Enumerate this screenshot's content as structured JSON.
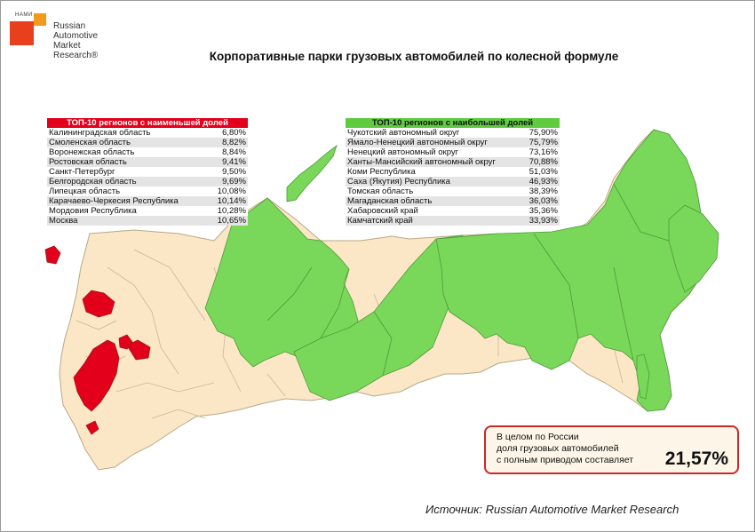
{
  "logo": {
    "nami": "НАМИ",
    "lines": [
      "Russian",
      "Automotive",
      "Market",
      "Research®"
    ]
  },
  "title": "Корпоративные парки грузовых автомобилей по колесной формуле",
  "low_table": {
    "header": "ТОП-10 регионов с наименьшей долей",
    "rows": [
      {
        "region": "Калининградская  область",
        "value": "6,80%"
      },
      {
        "region": "Смоленская область",
        "value": "8,82%"
      },
      {
        "region": "Воронежская область",
        "value": "8,84%"
      },
      {
        "region": "Ростовская область",
        "value": "9,41%"
      },
      {
        "region": "Санкт-Петербург",
        "value": "9,50%"
      },
      {
        "region": "Белгородская область",
        "value": "9,69%"
      },
      {
        "region": "Липецкая область",
        "value": "10,08%"
      },
      {
        "region": "Карачаево-Черкесия Республика",
        "value": "10,14%"
      },
      {
        "region": "Мордовия Республика",
        "value": "10,28%"
      },
      {
        "region": "Москва",
        "value": "10,65%"
      }
    ]
  },
  "high_table": {
    "header": "ТОП-10 регионов с наибольшей долей",
    "rows": [
      {
        "region": "Чукотский  автономный  округ",
        "value": "75,90%"
      },
      {
        "region": "Ямало-Ненецкий  автономный округ",
        "value": "75,79%"
      },
      {
        "region": "Ненецкий  автономный  округ",
        "value": "73,16%"
      },
      {
        "region": "Ханты-Мансийский  автономный округ",
        "value": "70,88%"
      },
      {
        "region": "Коми Республика",
        "value": "51,03%"
      },
      {
        "region": "Саха (Якутия) Республика",
        "value": "46,93%"
      },
      {
        "region": "Томская область",
        "value": "38,39%"
      },
      {
        "region": "Магаданская область",
        "value": "36,03%"
      },
      {
        "region": "Хабаровский край",
        "value": "35,36%"
      },
      {
        "region": "Камчатский край",
        "value": "33,93%"
      }
    ]
  },
  "summary": {
    "lines": [
      "В целом по России",
      "доля грузовых автомобилей",
      "с полным приводом составляет"
    ],
    "value": "21,57%"
  },
  "source": "Источник: Russian Automotive Market Research",
  "colors": {
    "low_regions": "#e2001a",
    "high_regions": "#79d75a",
    "other_regions": "#fbe7c6",
    "low_header": "#e2001a",
    "high_header": "#5fcc40",
    "summary_border": "#c8282c"
  }
}
